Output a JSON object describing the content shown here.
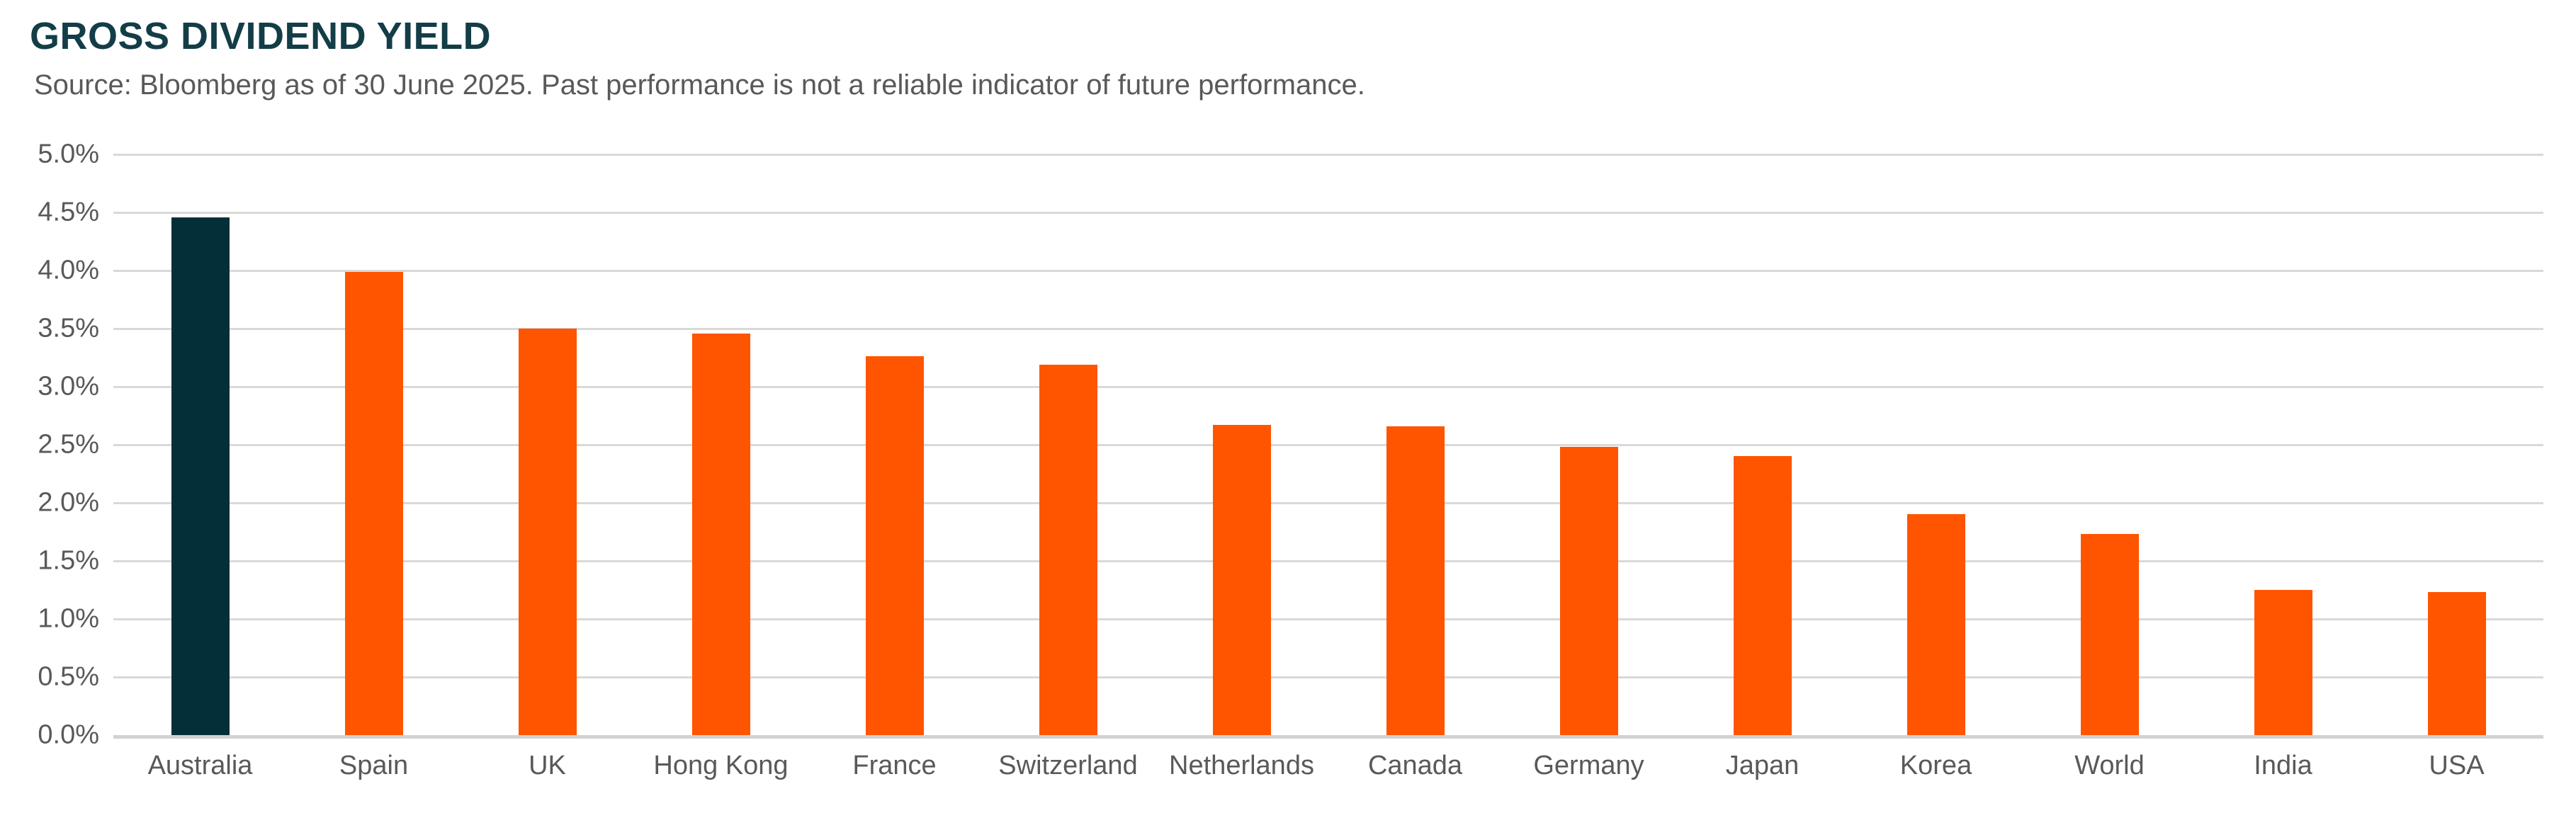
{
  "header": {
    "title": "GROSS DIVIDEND YIELD",
    "source": "Source: Bloomberg as of 30 June 2025. Past performance is not a reliable indicator of future performance."
  },
  "colors": {
    "title": "#133d47",
    "source_text": "#595959",
    "axis_text": "#595959",
    "gridline": "#d9d9d9",
    "axis_line": "#d2d2d2",
    "highlight_bar": "#032f38",
    "default_bar": "#ff5400"
  },
  "chart_data": {
    "type": "bar",
    "title": "GROSS DIVIDEND YIELD",
    "subtitle": "Source: Bloomberg as of 30 June 2025. Past performance is not a reliable indicator of future performance.",
    "unit": "%",
    "categories": [
      "Australia",
      "Spain",
      "UK",
      "Hong Kong",
      "France",
      "Switzerland",
      "Netherlands",
      "Canada",
      "Germany",
      "Japan",
      "Korea",
      "World",
      "India",
      "USA"
    ],
    "values": [
      4.46,
      3.99,
      3.5,
      3.46,
      3.26,
      3.19,
      2.67,
      2.66,
      2.48,
      2.4,
      1.9,
      1.73,
      1.25,
      1.23
    ],
    "highlight_category": "Australia",
    "xlabel": "",
    "ylabel": "",
    "ylim": [
      0,
      5
    ],
    "ytick_step": 0.5,
    "ytick_labels": [
      "0.0%",
      "0.5%",
      "1.0%",
      "1.5%",
      "2.0%",
      "2.5%",
      "3.0%",
      "3.5%",
      "4.0%",
      "4.5%",
      "5.0%"
    ],
    "grid": true,
    "legend": false
  }
}
